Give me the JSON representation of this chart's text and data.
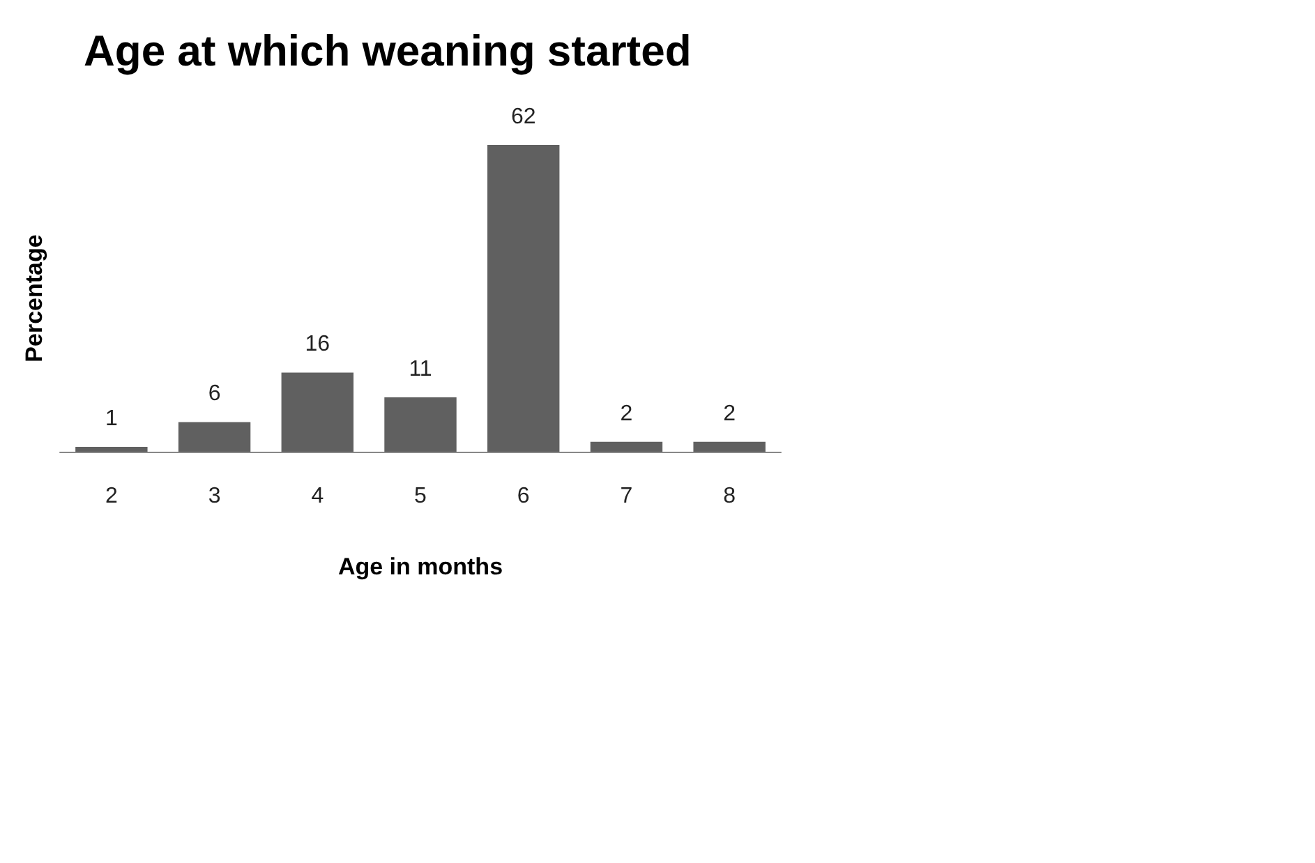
{
  "chart_data": {
    "type": "bar",
    "title": "Age at which weaning started",
    "xlabel": "Age in months",
    "ylabel": "Percentage",
    "categories": [
      "2",
      "3",
      "4",
      "5",
      "6",
      "7",
      "8"
    ],
    "values": [
      1,
      6,
      16,
      11,
      62,
      2,
      2
    ],
    "color": "#606060",
    "data_labels": true
  }
}
